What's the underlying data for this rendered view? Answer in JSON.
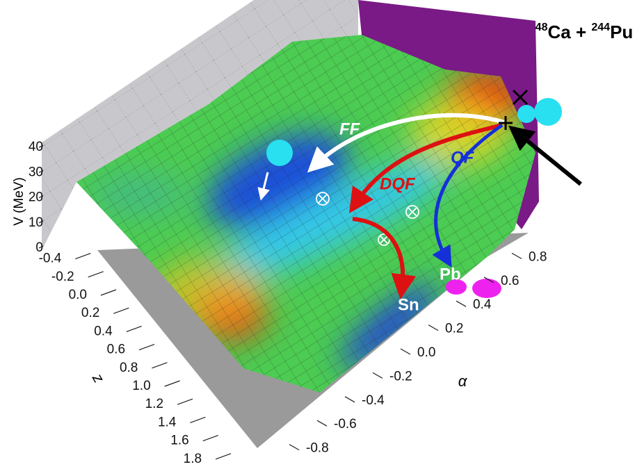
{
  "title": {
    "mass1": "48",
    "element1": "Ca",
    "plus": "+",
    "mass2": "244",
    "element2": "Pu"
  },
  "paths": {
    "ff": "FF",
    "dqf": "DQF",
    "qf": "QF"
  },
  "fragments": {
    "pb": "Pb",
    "sn": "Sn"
  },
  "axes": {
    "v": {
      "label": "V (MeV)",
      "ticks": [
        0,
        10,
        20,
        30,
        40
      ]
    },
    "z": {
      "label": "z",
      "ticks": [
        -0.4,
        -0.2,
        {
          "value": 0,
          "label": "0.0"
        },
        0.2,
        0.4,
        0.6,
        0.8,
        {
          "value": 1,
          "label": "1.0"
        },
        1.2,
        1.4,
        1.6,
        1.8
      ]
    },
    "alpha": {
      "label": "α",
      "ticks": [
        -0.8,
        -0.6,
        -0.4,
        -0.2,
        {
          "value": 0,
          "label": "0.0"
        },
        0.2,
        0.4,
        0.6,
        0.8
      ]
    }
  }
}
